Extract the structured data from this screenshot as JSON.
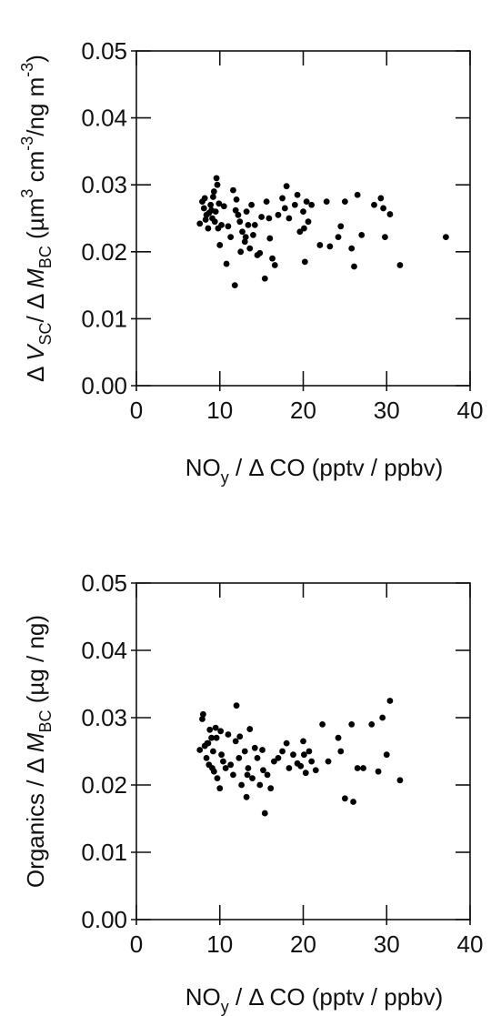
{
  "chart_data": [
    {
      "type": "scatter",
      "xlabel": "NOy / Δ CO (pptv / ppbv)",
      "ylabel": "Δ VSC / Δ MBC (µm3 cm-3/ng m-3)",
      "xlim": [
        0,
        40
      ],
      "ylim": [
        0,
        0.05
      ],
      "xticks": [
        "0",
        "10",
        "20",
        "30",
        "40"
      ],
      "yticks": [
        "0.00",
        "0.01",
        "0.02",
        "0.03",
        "0.04",
        "0.05"
      ],
      "grid": false,
      "x": [
        7.6,
        8.1,
        8.2,
        8.4,
        8.6,
        8.9,
        9.1,
        9.3,
        9.5,
        9.6,
        9.8,
        10.0,
        7.9,
        8.3,
        8.7,
        9.0,
        9.4,
        9.7,
        10.2,
        10.5,
        10.8,
        11.0,
        11.3,
        11.6,
        11.8,
        12.0,
        12.2,
        12.5,
        12.7,
        13.0,
        13.2,
        13.4,
        13.6,
        13.8,
        14.0,
        14.2,
        14.5,
        15.0,
        15.4,
        15.6,
        16.0,
        16.3,
        16.6,
        17.0,
        17.5,
        17.8,
        18.0,
        18.3,
        19.0,
        19.3,
        19.6,
        20.0,
        20.2,
        20.4,
        20.6,
        21.0,
        22.0,
        22.8,
        23.2,
        24.2,
        24.5,
        25.0,
        25.8,
        26.1,
        26.5,
        27.0,
        28.5,
        29.3,
        29.6,
        29.8,
        30.4,
        31.6,
        37.1,
        9.2,
        9.9,
        11.9,
        13.1,
        14.8,
        12.4,
        15.9,
        20.1
      ],
      "y": [
        0.0242,
        0.0265,
        0.028,
        0.0255,
        0.0235,
        0.027,
        0.025,
        0.029,
        0.026,
        0.031,
        0.0235,
        0.021,
        0.0275,
        0.0248,
        0.0258,
        0.0262,
        0.0245,
        0.03,
        0.024,
        0.0268,
        0.0182,
        0.0238,
        0.0222,
        0.0292,
        0.015,
        0.0278,
        0.0255,
        0.02,
        0.023,
        0.0215,
        0.026,
        0.024,
        0.0205,
        0.027,
        0.0225,
        0.024,
        0.0195,
        0.0252,
        0.016,
        0.0275,
        0.022,
        0.019,
        0.018,
        0.0255,
        0.028,
        0.0265,
        0.0298,
        0.025,
        0.027,
        0.0285,
        0.023,
        0.026,
        0.0185,
        0.0275,
        0.0245,
        0.027,
        0.021,
        0.0275,
        0.0208,
        0.0222,
        0.0238,
        0.0275,
        0.0205,
        0.0178,
        0.0285,
        0.0225,
        0.027,
        0.028,
        0.0265,
        0.0222,
        0.0256,
        0.018,
        0.0222,
        0.0282,
        0.0272,
        0.0262,
        0.0222,
        0.0198,
        0.0245,
        0.025,
        0.0235
      ]
    },
    {
      "type": "scatter",
      "xlabel": "NOy / Δ CO (pptv / ppbv)",
      "ylabel": "Organics / Δ MBC (µg / ng)",
      "xlim": [
        0,
        40
      ],
      "ylim": [
        0,
        0.05
      ],
      "xticks": [
        "0",
        "10",
        "20",
        "30",
        "40"
      ],
      "yticks": [
        "0.00",
        "0.01",
        "0.02",
        "0.03",
        "0.04",
        "0.05"
      ],
      "grid": false,
      "x": [
        7.6,
        8.0,
        8.2,
        8.5,
        8.7,
        9.0,
        9.2,
        9.5,
        9.7,
        10.0,
        7.9,
        8.4,
        8.8,
        9.3,
        9.6,
        10.2,
        10.4,
        10.7,
        11.0,
        11.3,
        11.6,
        11.9,
        12.0,
        12.3,
        12.6,
        13.0,
        13.2,
        13.4,
        13.6,
        13.9,
        14.2,
        14.5,
        14.8,
        15.1,
        15.4,
        15.7,
        16.1,
        16.5,
        17.0,
        17.5,
        18.0,
        18.3,
        18.8,
        19.3,
        19.7,
        20.0,
        20.3,
        20.7,
        21.0,
        21.5,
        22.3,
        23.0,
        24.2,
        24.5,
        25.0,
        25.8,
        26.0,
        26.5,
        27.2,
        28.2,
        29.0,
        29.5,
        30.0,
        30.4,
        31.6,
        9.1,
        10.1,
        12.4,
        13.3,
        15.2,
        20.1,
        8.6
      ],
      "y": [
        0.0252,
        0.0305,
        0.0258,
        0.0262,
        0.023,
        0.027,
        0.025,
        0.0285,
        0.021,
        0.0195,
        0.0298,
        0.024,
        0.0282,
        0.022,
        0.027,
        0.0245,
        0.0235,
        0.0225,
        0.0275,
        0.023,
        0.0215,
        0.0265,
        0.0318,
        0.024,
        0.02,
        0.025,
        0.0182,
        0.0225,
        0.0283,
        0.021,
        0.0255,
        0.024,
        0.02,
        0.0252,
        0.0158,
        0.0215,
        0.0195,
        0.0235,
        0.024,
        0.025,
        0.0262,
        0.0225,
        0.0245,
        0.0232,
        0.0228,
        0.0265,
        0.0218,
        0.025,
        0.0235,
        0.0222,
        0.029,
        0.0235,
        0.027,
        0.025,
        0.018,
        0.029,
        0.0175,
        0.0225,
        0.0225,
        0.029,
        0.022,
        0.03,
        0.0245,
        0.0325,
        0.0207,
        0.0225,
        0.028,
        0.0272,
        0.0215,
        0.0222,
        0.0245,
        0.0262
      ]
    }
  ]
}
